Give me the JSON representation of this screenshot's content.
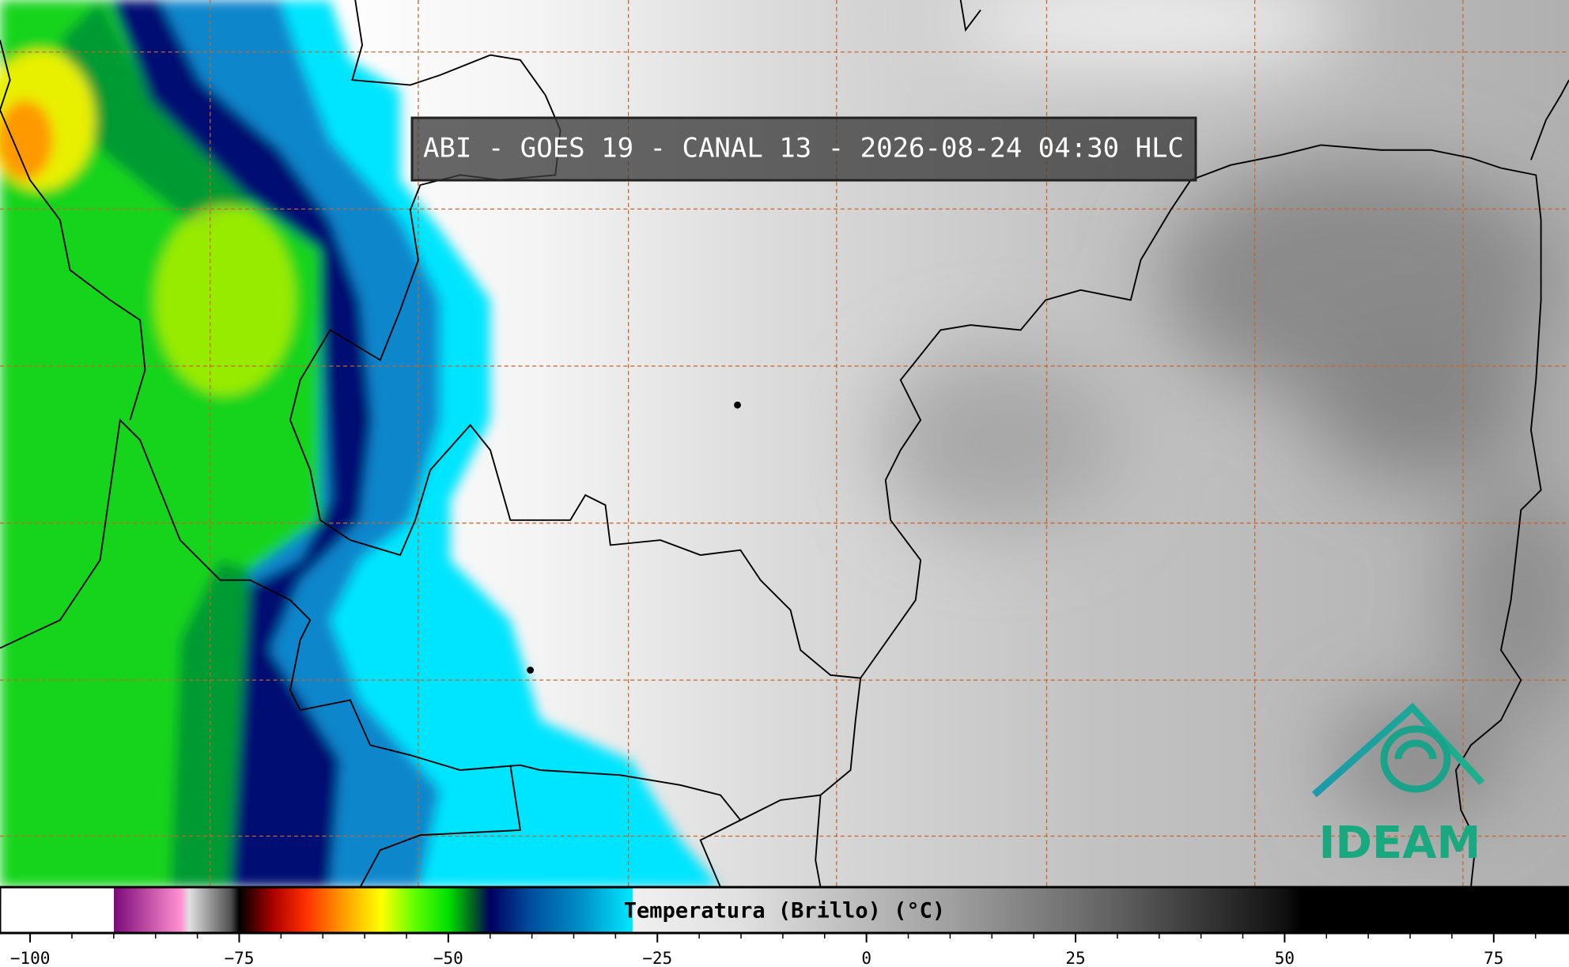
{
  "header": {
    "title": "ABI - GOES 19 - CANAL 13 - 2026-08-24 04:30 HLC"
  },
  "colorbar": {
    "label": "Temperatura (Brillo) (°C)",
    "xlim": [
      -103.6,
      84
    ],
    "xticks": [
      {
        "value": -100,
        "label": "−100"
      },
      {
        "value": -75,
        "label": "−75"
      },
      {
        "value": -50,
        "label": "−50"
      },
      {
        "value": -25,
        "label": "−25"
      },
      0,
      25,
      50,
      75
    ]
  },
  "logo": {
    "text": "IDEAM"
  }
}
